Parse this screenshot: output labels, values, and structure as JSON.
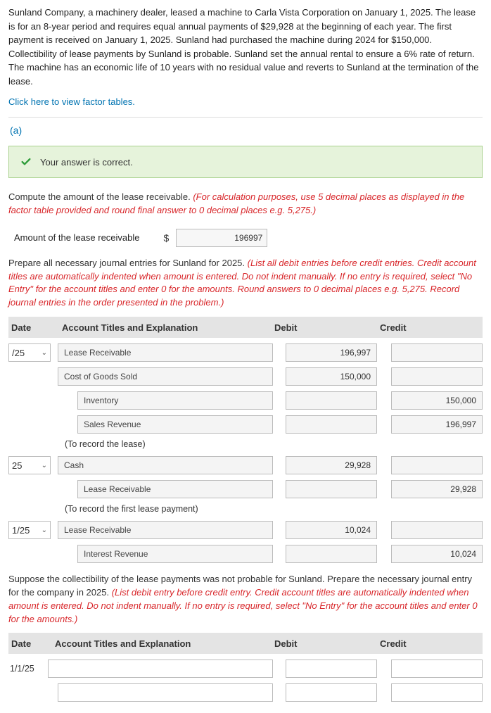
{
  "intro": "Sunland Company, a machinery dealer, leased a machine to Carla Vista Corporation on January 1, 2025. The lease is for an 8-year period and requires equal annual payments of $29,928 at the beginning of each year. The first payment is received on January 1, 2025. Sunland had purchased the machine during 2024 for $150,000. Collectibility of lease payments by Sunland is probable. Sunland set the annual rental to ensure a 6% rate of return. The machine has an economic life of 10 years with no residual value and reverts to Sunland at the termination of the lease.",
  "factor_link": "Click here to view factor tables.",
  "part_a": "(a)",
  "correct_msg": "Your answer is correct.",
  "compute_prefix": "Compute the amount of the lease receivable. ",
  "compute_red": "(For calculation purposes, use 5 decimal places as displayed in the factor table provided and round final answer to 0 decimal places e.g. 5,275.)",
  "amount_label": "Amount of the lease receivable",
  "amount_value": "196997",
  "prepare_prefix": "Prepare all necessary journal entries for Sunland for 2025. ",
  "prepare_red": "(List all debit entries before credit entries. Credit account titles are automatically indented when amount is entered. Do not indent manually. If no entry is required, select \"No Entry\" for the account titles and enter 0 for the amounts. Round answers to 0 decimal places e.g. 5,275. Record journal entries in the order presented in the problem.)",
  "headers": {
    "date": "Date",
    "acct": "Account Titles and Explanation",
    "debit": "Debit",
    "credit": "Credit"
  },
  "je": [
    {
      "date": "/25",
      "acct": "Lease Receivable",
      "debit": "196,997",
      "credit": "",
      "indent": 0
    },
    {
      "date": "",
      "acct": "Cost of Goods Sold",
      "debit": "150,000",
      "credit": "",
      "indent": 0
    },
    {
      "date": "",
      "acct": "Inventory",
      "debit": "",
      "credit": "150,000",
      "indent": 1
    },
    {
      "date": "",
      "acct": "Sales Revenue",
      "debit": "",
      "credit": "196,997",
      "indent": 1
    }
  ],
  "cap1": "(To record the lease)",
  "je2": [
    {
      "date": "25",
      "acct": "Cash",
      "debit": "29,928",
      "credit": "",
      "indent": 0
    },
    {
      "date": "",
      "acct": "Lease Receivable",
      "debit": "",
      "credit": "29,928",
      "indent": 1
    }
  ],
  "cap2": "(To record the first lease payment)",
  "je3": [
    {
      "date": "1/25",
      "acct": "Lease Receivable",
      "debit": "10,024",
      "credit": "",
      "indent": 0
    },
    {
      "date": "",
      "acct": "Interest Revenue",
      "debit": "",
      "credit": "10,024",
      "indent": 1
    }
  ],
  "suppose_prefix": "Suppose the collectibility of the lease payments was not probable for Sunland. Prepare the necessary journal entry for the company in 2025. ",
  "suppose_red": "(List debit entry before credit entry. Credit account titles are automatically indented when amount is entered. Do not indent manually. If no entry is required, select \"No Entry\" for the account titles and enter 0 for the amounts.)",
  "t2_date": "1/1/25",
  "colors": {
    "link": "#0073b1",
    "red": "#d8262a",
    "correct_bg": "#e6f3db",
    "correct_border": "#a9d18e",
    "header_bg": "#e4e4e4",
    "check": "#2e9c3a"
  }
}
